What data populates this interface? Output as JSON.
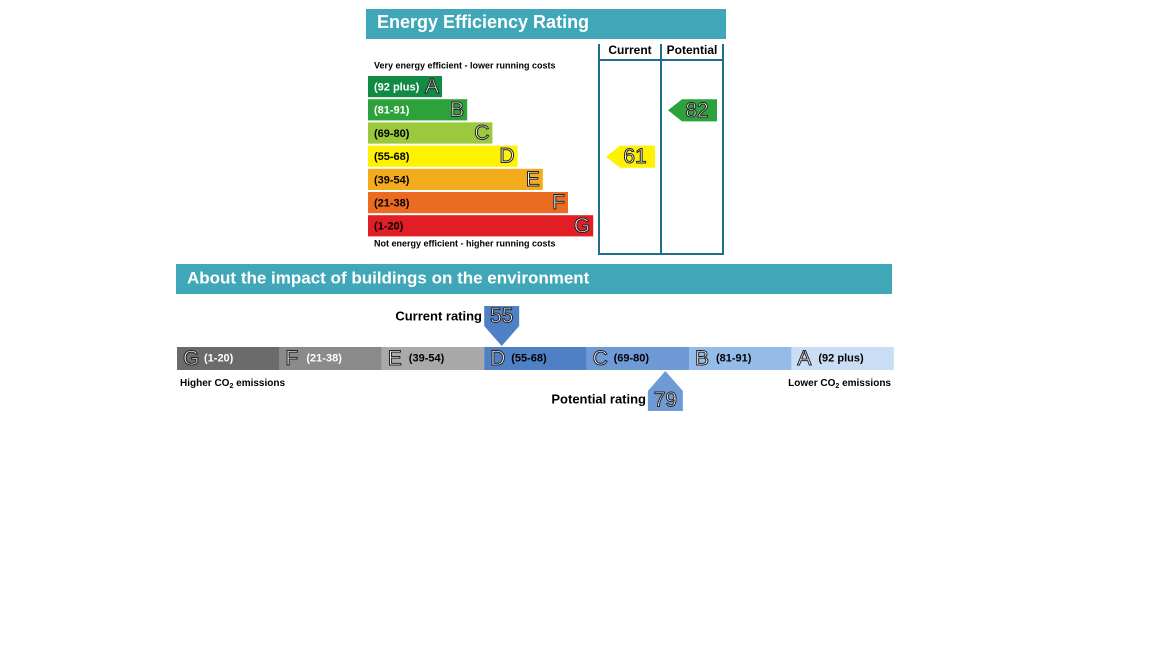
{
  "efficiency": {
    "title": "Energy Efficiency Rating",
    "top_note": "Very energy efficient - lower running costs",
    "bottom_note": "Not energy efficient - higher running costs",
    "columns": [
      "Current",
      "Potential"
    ],
    "bands": [
      {
        "range": "(92 plus)",
        "letter": "A",
        "color": "#118a44",
        "text_color": "#ffffff"
      },
      {
        "range": "(81-91)",
        "letter": "B",
        "color": "#2da23a",
        "text_color": "#ffffff"
      },
      {
        "range": "(69-80)",
        "letter": "C",
        "color": "#9bc93d",
        "text_color": "#000000"
      },
      {
        "range": "(55-68)",
        "letter": "D",
        "color": "#fff200",
        "text_color": "#000000"
      },
      {
        "range": "(39-54)",
        "letter": "E",
        "color": "#f5ac1c",
        "text_color": "#000000"
      },
      {
        "range": "(21-38)",
        "letter": "F",
        "color": "#ec6b23",
        "text_color": "#000000"
      },
      {
        "range": "(1-20)",
        "letter": "G",
        "color": "#e11e26",
        "text_color": "#000000"
      }
    ],
    "current": 61,
    "potential": 82
  },
  "environment": {
    "title": "About the impact of buildings on the environment",
    "current_label": "Current rating",
    "potential_label": "Potential rating",
    "left_note": {
      "text": "Higher CO",
      "sub": "2",
      "tail": " emissions"
    },
    "right_note": {
      "text": "Lower CO",
      "sub": "2",
      "tail": " emissions"
    },
    "bands": [
      {
        "range": "(1-20)",
        "letter": "G",
        "color": "#6b6b6b",
        "text_color": "#ffffff"
      },
      {
        "range": "(21-38)",
        "letter": "F",
        "color": "#8a8a8a",
        "text_color": "#ffffff"
      },
      {
        "range": "(39-54)",
        "letter": "E",
        "color": "#a9a9a9",
        "text_color": "#000000"
      },
      {
        "range": "(55-68)",
        "letter": "D",
        "color": "#4f80c5",
        "text_color": "#000000"
      },
      {
        "range": "(69-80)",
        "letter": "C",
        "color": "#6e9bd6",
        "text_color": "#000000"
      },
      {
        "range": "(81-91)",
        "letter": "B",
        "color": "#95bbe9",
        "text_color": "#000000"
      },
      {
        "range": "(92 plus)",
        "letter": "A",
        "color": "#c9ddf5",
        "text_color": "#000000"
      }
    ],
    "current": 55,
    "potential": 79,
    "arrow_color": "#4f80c5",
    "potential_arrow_color": "#6e9bd6"
  }
}
